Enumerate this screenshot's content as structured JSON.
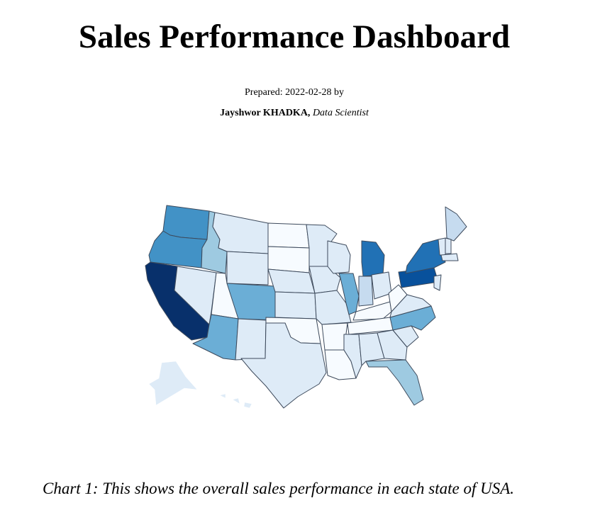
{
  "header": {
    "title": "Sales Performance Dashboard",
    "prepared_prefix": "Prepared: ",
    "prepared_date": "2022-02-28",
    "prepared_suffix": " by",
    "author_name": "Jayshwor KHADKA,",
    "author_role": "Data Scientist"
  },
  "map_data": {
    "type": "choropleth",
    "region": "USA states",
    "colorscale": [
      "#f7fbff",
      "#deebf7",
      "#c6dbef",
      "#9ecae1",
      "#6baed6",
      "#4292c6",
      "#2171b5",
      "#08519c",
      "#08306b"
    ],
    "legend": "none",
    "levels": {
      "WA": 0.62,
      "OR": 0.58,
      "CA": 1.0,
      "ID": 0.42,
      "NV": 0.12,
      "UT": 0.02,
      "AZ": 0.55,
      "MT": 0.08,
      "WY": 0.08,
      "CO": 0.45,
      "NM": 0.1,
      "ND": 0.02,
      "SD": 0.06,
      "NE": 0.1,
      "KS": 0.08,
      "OK": 0.02,
      "TX": 0.18,
      "MN": 0.08,
      "IA": 0.18,
      "MO": 0.14,
      "AR": 0.01,
      "LA": 0.02,
      "WI": 0.1,
      "IL": 0.55,
      "MI": 0.78,
      "IN": 0.3,
      "OH": 0.16,
      "KY": 0.01,
      "TN": 0.03,
      "MS": 0.08,
      "AL": 0.18,
      "GA": 0.08,
      "FL": 0.32,
      "SC": 0.12,
      "NC": 0.52,
      "VA": 0.12,
      "WV": 0.01,
      "PA": 0.86,
      "NY": 0.74,
      "ME": 0.22,
      "NH": 0.15,
      "VT": 0.12,
      "MA": 0.15,
      "NJ": 0.1,
      "AK": 0.12,
      "HI": 0.12
    }
  },
  "caption": "Chart 1: This shows the overall sales performance in each state of USA."
}
